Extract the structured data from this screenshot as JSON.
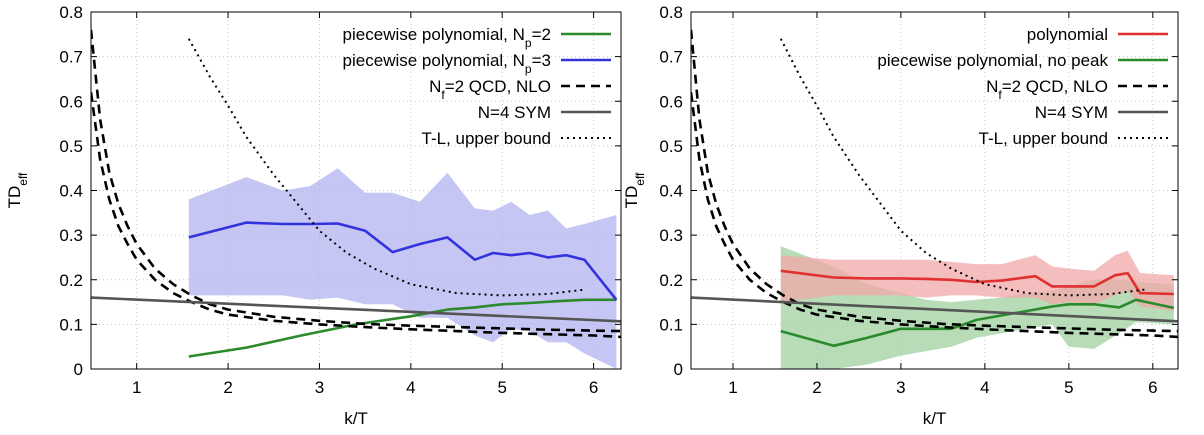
{
  "chart_data": [
    {
      "type": "line",
      "xlabel": "k/T",
      "ylabel": "TD",
      "ylabel_sub": "eff",
      "xlim": [
        0.5,
        6.3
      ],
      "ylim": [
        0,
        0.8
      ],
      "xticks": [
        "1",
        "2",
        "3",
        "4",
        "5",
        "6"
      ],
      "yticks": [
        "0",
        "0.1",
        "0.2",
        "0.3",
        "0.4",
        "0.5",
        "0.6",
        "0.7",
        "0.8"
      ],
      "grid": true,
      "legend_position": "top-right",
      "legend": [
        {
          "prefix": "piecewise polynomial, N",
          "sub": "p",
          "suffix": "=2",
          "color": "#2b8a2b",
          "style": "solid"
        },
        {
          "prefix": "piecewise polynomial, N",
          "sub": "p",
          "suffix": "=3",
          "color": "#3333dd",
          "style": "solid"
        },
        {
          "prefix": "N",
          "sub": "f",
          "suffix": "=2 QCD, NLO",
          "color": "#000000",
          "style": "dashed"
        },
        {
          "prefix": "N=4 SYM",
          "sub": "",
          "suffix": "",
          "color": "#555555",
          "style": "solid"
        },
        {
          "prefix": "T-L, upper bound",
          "sub": "",
          "suffix": "",
          "color": "#000000",
          "style": "dotted"
        }
      ],
      "series": [
        {
          "name": "piecewise polynomial, Np=2",
          "color": "#2b8a2b",
          "style": "solid",
          "x": [
            1.57,
            2.2,
            2.8,
            3.4,
            4.0,
            4.4,
            4.7,
            5.0,
            5.3,
            5.6,
            5.9,
            6.25
          ],
          "y": [
            0.028,
            0.048,
            0.075,
            0.1,
            0.118,
            0.133,
            0.138,
            0.145,
            0.148,
            0.152,
            0.155,
            0.155
          ]
        },
        {
          "name": "piecewise polynomial, Np=3",
          "color": "#3333dd",
          "style": "solid",
          "x": [
            1.57,
            2.2,
            2.6,
            2.9,
            3.2,
            3.5,
            3.8,
            4.1,
            4.4,
            4.7,
            4.9,
            5.1,
            5.3,
            5.5,
            5.7,
            5.9,
            6.25
          ],
          "y": [
            0.295,
            0.328,
            0.325,
            0.325,
            0.326,
            0.31,
            0.262,
            0.28,
            0.295,
            0.245,
            0.26,
            0.255,
            0.26,
            0.25,
            0.255,
            0.245,
            0.155
          ],
          "band": {
            "fill": "#b3b3f2",
            "lower": [
              0.165,
              0.165,
              0.165,
              0.155,
              0.16,
              0.145,
              0.145,
              0.115,
              0.115,
              0.075,
              0.06,
              0.09,
              0.085,
              0.06,
              0.06,
              0.035,
              0.0
            ],
            "upper": [
              0.38,
              0.43,
              0.4,
              0.41,
              0.45,
              0.395,
              0.395,
              0.375,
              0.44,
              0.36,
              0.355,
              0.375,
              0.345,
              0.355,
              0.315,
              0.325,
              0.345
            ]
          }
        },
        {
          "name": "Nf=2 QCD, NLO (upper)",
          "color": "#000000",
          "style": "dashed",
          "x": [
            0.5,
            0.6,
            0.7,
            0.8,
            0.9,
            1.0,
            1.2,
            1.4,
            1.6,
            1.8,
            2.0,
            2.5,
            3.0,
            3.5,
            4.0,
            4.5,
            5.0,
            5.5,
            6.0,
            6.3
          ],
          "y": [
            0.76,
            0.56,
            0.44,
            0.37,
            0.32,
            0.28,
            0.225,
            0.19,
            0.165,
            0.145,
            0.133,
            0.117,
            0.108,
            0.101,
            0.097,
            0.094,
            0.091,
            0.088,
            0.086,
            0.085
          ]
        },
        {
          "name": "Nf=2 QCD, NLO (lower)",
          "color": "#000000",
          "style": "dashed",
          "x": [
            0.5,
            0.6,
            0.7,
            0.8,
            0.9,
            1.0,
            1.2,
            1.4,
            1.6,
            1.8,
            2.0,
            2.5,
            3.0,
            3.5,
            4.0,
            4.5,
            5.0,
            5.5,
            6.0,
            6.3
          ],
          "y": [
            0.62,
            0.47,
            0.38,
            0.32,
            0.28,
            0.245,
            0.2,
            0.17,
            0.15,
            0.133,
            0.122,
            0.108,
            0.1,
            0.094,
            0.089,
            0.085,
            0.081,
            0.078,
            0.075,
            0.072
          ]
        },
        {
          "name": "N=4 SYM",
          "color": "#555555",
          "style": "solid",
          "x": [
            0.5,
            6.3
          ],
          "y": [
            0.16,
            0.107
          ]
        },
        {
          "name": "T-L, upper bound",
          "color": "#000000",
          "style": "dotted",
          "x": [
            1.57,
            1.8,
            2.0,
            2.2,
            2.5,
            2.8,
            3.0,
            3.3,
            3.6,
            4.0,
            4.5,
            5.0,
            5.5,
            5.9
          ],
          "y": [
            0.74,
            0.655,
            0.59,
            0.52,
            0.435,
            0.36,
            0.31,
            0.26,
            0.225,
            0.19,
            0.17,
            0.165,
            0.168,
            0.178
          ]
        }
      ]
    },
    {
      "type": "line",
      "xlabel": "k/T",
      "ylabel": "TD",
      "ylabel_sub": "eff",
      "xlim": [
        0.5,
        6.3
      ],
      "ylim": [
        0,
        0.8
      ],
      "xticks": [
        "1",
        "2",
        "3",
        "4",
        "5",
        "6"
      ],
      "yticks": [
        "0",
        "0.1",
        "0.2",
        "0.3",
        "0.4",
        "0.5",
        "0.6",
        "0.7",
        "0.8"
      ],
      "grid": true,
      "legend_position": "top-right",
      "legend": [
        {
          "prefix": "polynomial",
          "sub": "",
          "suffix": "",
          "color": "#e03030",
          "style": "solid"
        },
        {
          "prefix": "piecewise polynomial, no peak",
          "sub": "",
          "suffix": "",
          "color": "#2b8a2b",
          "style": "solid"
        },
        {
          "prefix": "N",
          "sub": "f",
          "suffix": "=2 QCD, NLO",
          "color": "#000000",
          "style": "dashed"
        },
        {
          "prefix": "N=4 SYM",
          "sub": "",
          "suffix": "",
          "color": "#555555",
          "style": "solid"
        },
        {
          "prefix": "T-L, upper bound",
          "sub": "",
          "suffix": "",
          "color": "#000000",
          "style": "dotted"
        }
      ],
      "series": [
        {
          "name": "piecewise polynomial, no peak",
          "color": "#2b8a2b",
          "style": "solid",
          "x": [
            1.57,
            2.2,
            2.6,
            3.0,
            3.3,
            3.6,
            3.9,
            4.2,
            4.5,
            4.8,
            5.0,
            5.3,
            5.6,
            5.8,
            6.25
          ],
          "y": [
            0.085,
            0.052,
            0.07,
            0.09,
            0.09,
            0.09,
            0.11,
            0.12,
            0.13,
            0.14,
            0.145,
            0.145,
            0.138,
            0.155,
            0.137
          ],
          "band": {
            "fill": "#9fd09f",
            "lower": [
              0.0,
              0.0,
              0.01,
              0.03,
              0.04,
              0.05,
              0.07,
              0.08,
              0.09,
              0.1,
              0.05,
              0.045,
              0.08,
              0.105,
              0.1
            ],
            "upper": [
              0.275,
              0.23,
              0.19,
              0.17,
              0.155,
              0.15,
              0.155,
              0.16,
              0.17,
              0.175,
              0.185,
              0.2,
              0.2,
              0.195,
              0.19
            ]
          }
        },
        {
          "name": "polynomial",
          "color": "#e03030",
          "style": "solid",
          "x": [
            1.57,
            2.2,
            2.6,
            3.0,
            3.3,
            3.6,
            3.9,
            4.2,
            4.6,
            4.8,
            5.0,
            5.3,
            5.55,
            5.7,
            5.85,
            6.25
          ],
          "y": [
            0.22,
            0.205,
            0.203,
            0.203,
            0.202,
            0.2,
            0.195,
            0.198,
            0.208,
            0.185,
            0.185,
            0.185,
            0.21,
            0.215,
            0.17,
            0.168
          ],
          "band": {
            "fill": "#f2a8a8",
            "lower": [
              0.15,
              0.165,
              0.165,
              0.165,
              0.16,
              0.165,
              0.165,
              0.16,
              0.16,
              0.145,
              0.15,
              0.145,
              0.165,
              0.175,
              0.14,
              0.13
            ],
            "upper": [
              0.255,
              0.245,
              0.245,
              0.245,
              0.245,
              0.24,
              0.235,
              0.235,
              0.255,
              0.23,
              0.225,
              0.22,
              0.255,
              0.265,
              0.215,
              0.21
            ]
          }
        },
        {
          "name": "Nf=2 QCD, NLO (upper)",
          "color": "#000000",
          "style": "dashed",
          "x": [
            0.5,
            0.6,
            0.7,
            0.8,
            0.9,
            1.0,
            1.2,
            1.4,
            1.6,
            1.8,
            2.0,
            2.5,
            3.0,
            3.5,
            4.0,
            4.5,
            5.0,
            5.5,
            6.0,
            6.3
          ],
          "y": [
            0.76,
            0.56,
            0.44,
            0.37,
            0.32,
            0.28,
            0.225,
            0.19,
            0.165,
            0.145,
            0.133,
            0.117,
            0.108,
            0.101,
            0.097,
            0.094,
            0.091,
            0.088,
            0.086,
            0.085
          ]
        },
        {
          "name": "Nf=2 QCD, NLO (lower)",
          "color": "#000000",
          "style": "dashed",
          "x": [
            0.5,
            0.6,
            0.7,
            0.8,
            0.9,
            1.0,
            1.2,
            1.4,
            1.6,
            1.8,
            2.0,
            2.5,
            3.0,
            3.5,
            4.0,
            4.5,
            5.0,
            5.5,
            6.0,
            6.3
          ],
          "y": [
            0.62,
            0.47,
            0.38,
            0.32,
            0.28,
            0.245,
            0.2,
            0.17,
            0.15,
            0.133,
            0.122,
            0.108,
            0.1,
            0.094,
            0.089,
            0.085,
            0.081,
            0.078,
            0.075,
            0.072
          ]
        },
        {
          "name": "N=4 SYM",
          "color": "#555555",
          "style": "solid",
          "x": [
            0.5,
            6.3
          ],
          "y": [
            0.16,
            0.107
          ]
        },
        {
          "name": "T-L, upper bound",
          "color": "#000000",
          "style": "dotted",
          "x": [
            1.57,
            1.8,
            2.0,
            2.2,
            2.5,
            2.8,
            3.0,
            3.3,
            3.6,
            4.0,
            4.5,
            5.0,
            5.5,
            5.9
          ],
          "y": [
            0.74,
            0.655,
            0.59,
            0.52,
            0.435,
            0.36,
            0.31,
            0.26,
            0.225,
            0.19,
            0.17,
            0.165,
            0.168,
            0.178
          ]
        }
      ]
    }
  ]
}
